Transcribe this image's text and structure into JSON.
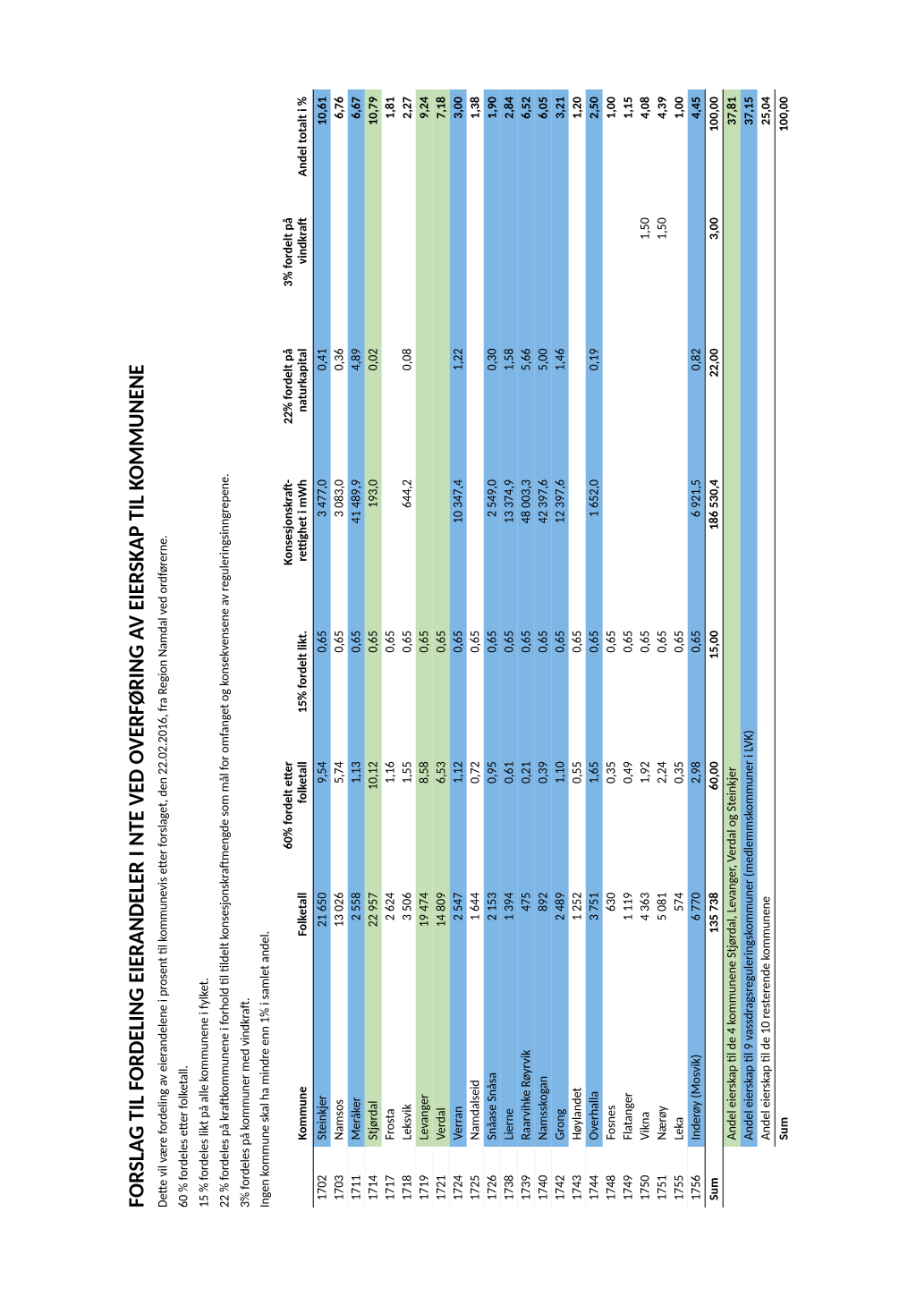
{
  "title": "FORSLAG TIL FORDELING EIERANDELER I NTE VED OVERFØRING AV EIERSKAP TIL KOMMUNENE",
  "intro": [
    "Dette vil være fordeling av eierandelene i prosent til kommunevis etter forslaget, den 22.02.2016, fra Region Namdal ved ordførerne.",
    "60 % fordeles etter folketall.",
    "15 % fordeles likt på alle kommunene i fylket.",
    "22 % fordeles på kraftkommunene i forhold til  tildelt konsesjonskraftmengde som  mål for omfanget og konsekvensene av reguleringsinngrepene.",
    "3% fordeles på kommuner med vindkraft.",
    "Ingen kommune skal ha mindre enn 1% i samlet andel."
  ],
  "columns": {
    "kommune": "Kommune",
    "folketall": "Folketall",
    "sixty": "60% fordelt etter folketall",
    "fifteen": "15% fordelt likt.",
    "konsesjon": "Konsesjonskraft-rettighet i mWh",
    "twentytwo": "22% fordelt på naturkapital",
    "three": "3% fordelt på vindkraft",
    "andel": "Andel totalt i %"
  },
  "colors": {
    "blue": "#7eb6e6",
    "green": "#c5e0b4",
    "white": "#ffffff"
  },
  "rows": [
    {
      "code": "1702",
      "name": "Steinkjer",
      "folketall": "21 650",
      "sixty": "9,54",
      "fifteen": "0,65",
      "konsesjon": "3 477,0",
      "twentytwo": "0,41",
      "three": "",
      "andel": "10,61",
      "color": "blue"
    },
    {
      "code": "1703",
      "name": "Namsos",
      "folketall": "13 026",
      "sixty": "5,74",
      "fifteen": "0,65",
      "konsesjon": "3 083,0",
      "twentytwo": "0,36",
      "three": "",
      "andel": "6,76",
      "color": "white"
    },
    {
      "code": "1711",
      "name": "Meråker",
      "folketall": "2 558",
      "sixty": "1,13",
      "fifteen": "0,65",
      "konsesjon": "41 489,9",
      "twentytwo": "4,89",
      "three": "",
      "andel": "6,67",
      "color": "blue"
    },
    {
      "code": "1714",
      "name": "Stjørdal",
      "folketall": "22 957",
      "sixty": "10,12",
      "fifteen": "0,65",
      "konsesjon": "193,0",
      "twentytwo": "0,02",
      "three": "",
      "andel": "10,79",
      "color": "green"
    },
    {
      "code": "1717",
      "name": "Frosta",
      "folketall": "2 624",
      "sixty": "1,16",
      "fifteen": "0,65",
      "konsesjon": "",
      "twentytwo": "",
      "three": "",
      "andel": "1,81",
      "color": "white"
    },
    {
      "code": "1718",
      "name": "Leksvik",
      "folketall": "3 506",
      "sixty": "1,55",
      "fifteen": "0,65",
      "konsesjon": "644,2",
      "twentytwo": "0,08",
      "three": "",
      "andel": "2,27",
      "color": "white"
    },
    {
      "code": "1719",
      "name": "Levanger",
      "folketall": "19 474",
      "sixty": "8,58",
      "fifteen": "0,65",
      "konsesjon": "",
      "twentytwo": "",
      "three": "",
      "andel": "9,24",
      "color": "green"
    },
    {
      "code": "1721",
      "name": "Verdal",
      "folketall": "14 809",
      "sixty": "6,53",
      "fifteen": "0,65",
      "konsesjon": "",
      "twentytwo": "",
      "three": "",
      "andel": "7,18",
      "color": "green"
    },
    {
      "code": "1724",
      "name": "Verran",
      "folketall": "2 547",
      "sixty": "1,12",
      "fifteen": "0,65",
      "konsesjon": "10 347,4",
      "twentytwo": "1,22",
      "three": "",
      "andel": "3,00",
      "color": "blue"
    },
    {
      "code": "1725",
      "name": "Namdalseid",
      "folketall": "1 644",
      "sixty": "0,72",
      "fifteen": "0,65",
      "konsesjon": "",
      "twentytwo": "",
      "three": "",
      "andel": "1,38",
      "color": "white"
    },
    {
      "code": "1726",
      "name": "Snåase Snåsa",
      "folketall": "2 153",
      "sixty": "0,95",
      "fifteen": "0,65",
      "konsesjon": "2 549,0",
      "twentytwo": "0,30",
      "three": "",
      "andel": "1,90",
      "color": "blue"
    },
    {
      "code": "1738",
      "name": "Lierne",
      "folketall": "1 394",
      "sixty": "0,61",
      "fifteen": "0,65",
      "konsesjon": "13 374,9",
      "twentytwo": "1,58",
      "three": "",
      "andel": "2,84",
      "color": "blue"
    },
    {
      "code": "1739",
      "name": "Raarvihke Røyrvik",
      "folketall": "475",
      "sixty": "0,21",
      "fifteen": "0,65",
      "konsesjon": "48 003,3",
      "twentytwo": "5,66",
      "three": "",
      "andel": "6,52",
      "color": "blue"
    },
    {
      "code": "1740",
      "name": "Namsskogan",
      "folketall": "892",
      "sixty": "0,39",
      "fifteen": "0,65",
      "konsesjon": "42 397,6",
      "twentytwo": "5,00",
      "three": "",
      "andel": "6,05",
      "color": "blue"
    },
    {
      "code": "1742",
      "name": "Grong",
      "folketall": "2 489",
      "sixty": "1,10",
      "fifteen": "0,65",
      "konsesjon": "12 397,6",
      "twentytwo": "1,46",
      "three": "",
      "andel": "3,21",
      "color": "blue"
    },
    {
      "code": "1743",
      "name": "Høylandet",
      "folketall": "1 252",
      "sixty": "0,55",
      "fifteen": "0,65",
      "konsesjon": "",
      "twentytwo": "",
      "three": "",
      "andel": "1,20",
      "color": "white"
    },
    {
      "code": "1744",
      "name": "Overhalla",
      "folketall": "3 751",
      "sixty": "1,65",
      "fifteen": "0,65",
      "konsesjon": "1 652,0",
      "twentytwo": "0,19",
      "three": "",
      "andel": "2,50",
      "color": "blue"
    },
    {
      "code": "1748",
      "name": "Fosnes",
      "folketall": "630",
      "sixty": "0,35",
      "fifteen": "0,65",
      "konsesjon": "",
      "twentytwo": "",
      "three": "",
      "andel": "1,00",
      "color": "white"
    },
    {
      "code": "1749",
      "name": "Flatanger",
      "folketall": "1 119",
      "sixty": "0,49",
      "fifteen": "0,65",
      "konsesjon": "",
      "twentytwo": "",
      "three": "",
      "andel": "1,15",
      "color": "white"
    },
    {
      "code": "1750",
      "name": "Vikna",
      "folketall": "4 363",
      "sixty": "1,92",
      "fifteen": "0,65",
      "konsesjon": "",
      "twentytwo": "",
      "three": "1,50",
      "andel": "4,08",
      "color": "white"
    },
    {
      "code": "1751",
      "name": "Nærøy",
      "folketall": "5 081",
      "sixty": "2,24",
      "fifteen": "0,65",
      "konsesjon": "",
      "twentytwo": "",
      "three": "1,50",
      "andel": "4,39",
      "color": "white"
    },
    {
      "code": "1755",
      "name": "Leka",
      "folketall": "574",
      "sixty": "0,35",
      "fifteen": "0,65",
      "konsesjon": "",
      "twentytwo": "",
      "three": "",
      "andel": "1,00",
      "color": "white"
    },
    {
      "code": "1756",
      "name": "Inderøy (Mosvik)",
      "folketall": "6 770",
      "sixty": "2,98",
      "fifteen": "0,65",
      "konsesjon": "6 921,5",
      "twentytwo": "0,82",
      "three": "",
      "andel": "4,45",
      "color": "blue"
    }
  ],
  "sum": {
    "label": "Sum",
    "folketall": "135 738",
    "sixty": "60,00",
    "fifteen": "15,00",
    "konsesjon": "186 530,4",
    "twentytwo": "22,00",
    "three": "3,00",
    "andel": "100,00"
  },
  "summary": [
    {
      "label": "Andel eierskap til de 4  kommunene Stjørdal, Levanger, Verdal og Steinkjer",
      "value": "37,81",
      "color": "green"
    },
    {
      "label": "Andel eierskap til 9 vassdragsreguleringskommuner (medlemmskommuner i LVK)",
      "value": "37,15",
      "color": "blue"
    },
    {
      "label": "Andel eierskap til de 10 resterende kommunene",
      "value": "25,04",
      "color": "white"
    }
  ],
  "total": {
    "label": "Sum",
    "value": "100,00"
  }
}
